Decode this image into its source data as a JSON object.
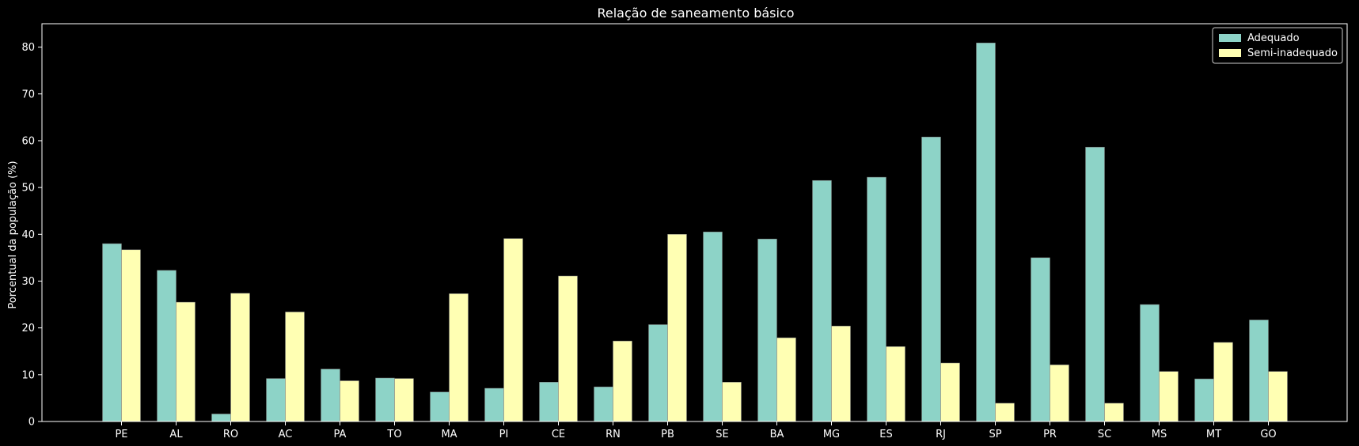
{
  "chart_data": {
    "type": "bar",
    "title": "Relação de saneamento básico",
    "xlabel": "",
    "ylabel": "Porcentual da população (%)",
    "ylim": [
      0,
      85
    ],
    "yticks": [
      "0",
      "10",
      "20",
      "30",
      "40",
      "50",
      "60",
      "70",
      "80"
    ],
    "categories": [
      "PE",
      "AL",
      "RO",
      "AC",
      "PA",
      "TO",
      "MA",
      "PI",
      "CE",
      "RN",
      "PB",
      "SE",
      "BA",
      "MG",
      "ES",
      "RJ",
      "SP",
      "PR",
      "SC",
      "MS",
      "MT",
      "GO"
    ],
    "series": [
      {
        "name": "Adequado",
        "color": "#8dd3c7",
        "values": [
          38.0,
          32.3,
          1.6,
          9.2,
          11.2,
          9.3,
          6.3,
          7.1,
          8.4,
          7.4,
          20.7,
          40.5,
          39.0,
          51.5,
          52.2,
          60.8,
          80.9,
          35.0,
          58.6,
          25.0,
          9.1,
          21.7
        ]
      },
      {
        "name": "Semi-inadequado",
        "color": "#ffffb3",
        "values": [
          36.7,
          25.5,
          27.4,
          23.4,
          8.7,
          9.2,
          27.3,
          39.1,
          31.1,
          17.2,
          40.0,
          8.4,
          17.9,
          20.4,
          16.0,
          12.5,
          3.9,
          12.1,
          3.9,
          10.7,
          16.9,
          10.7
        ]
      }
    ],
    "legend_position": "top-right",
    "grid": false,
    "background": "#000000",
    "foreground": "#ffffff"
  }
}
